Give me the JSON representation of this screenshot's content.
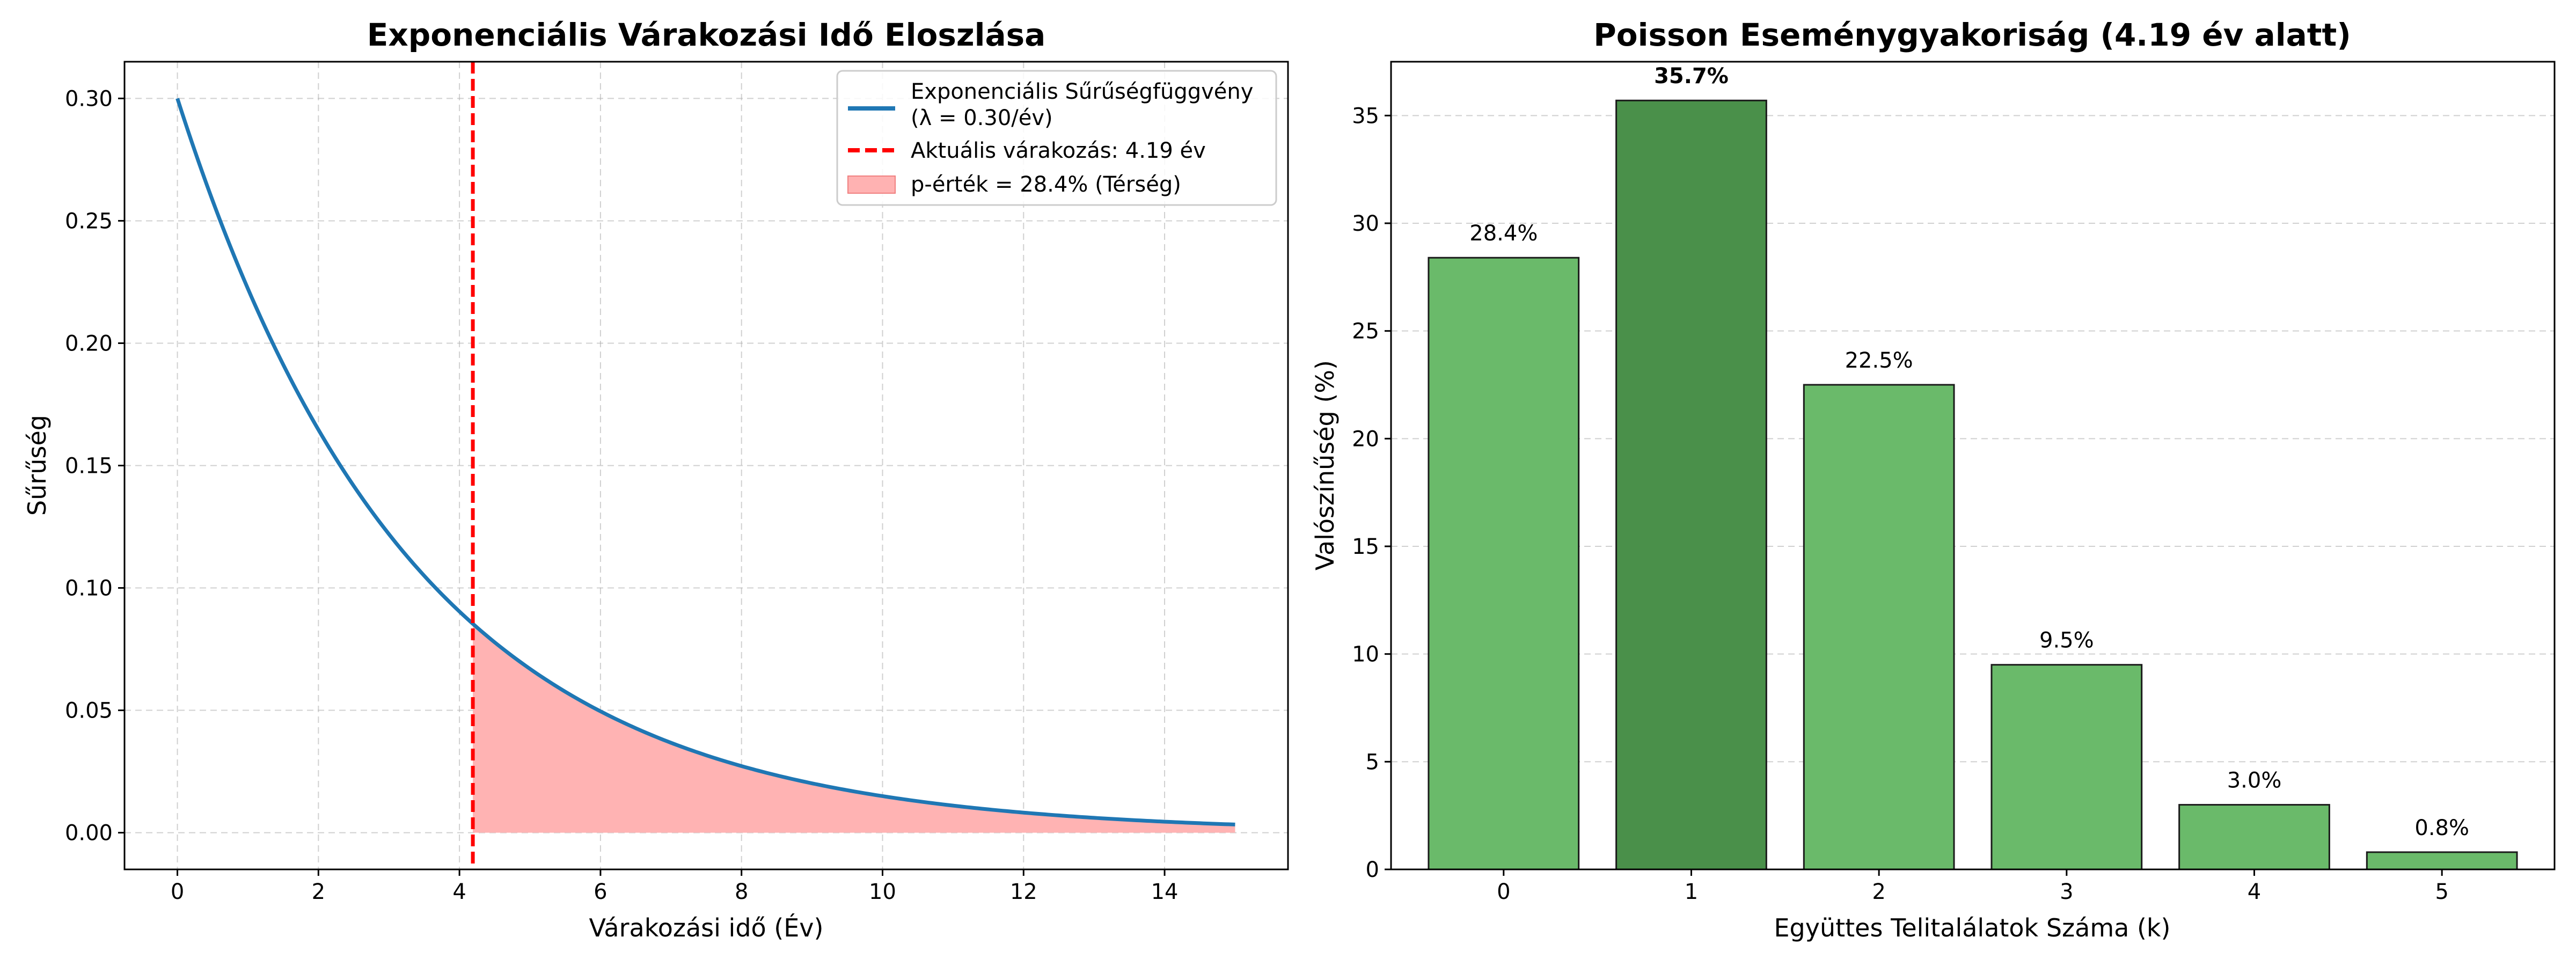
{
  "chart_data": [
    {
      "type": "line",
      "title": "Exponenciális Várakozási Idő Eloszlása",
      "xlabel": "Várakozási idő (Év)",
      "ylabel": "Sűrűség",
      "xlim": [
        -0.75,
        15.75
      ],
      "ylim": [
        -0.015,
        0.315
      ],
      "xticks": [
        0,
        2,
        4,
        6,
        8,
        10,
        12,
        14
      ],
      "xtick_labels": [
        "0",
        "2",
        "4",
        "6",
        "8",
        "10",
        "12",
        "14"
      ],
      "yticks": [
        0.0,
        0.05,
        0.1,
        0.15,
        0.2,
        0.25,
        0.3
      ],
      "ytick_labels": [
        "0.00",
        "0.05",
        "0.10",
        "0.15",
        "0.20",
        "0.25",
        "0.30"
      ],
      "grid": true,
      "lambda": 0.3,
      "x_range": [
        0,
        15
      ],
      "wait_time": 4.19,
      "legend": {
        "position": "top-right",
        "entries": [
          {
            "line1": "Exponenciális Sűrűségfüggvény",
            "line2": "(λ = 0.30/év)",
            "color": "#1f77b4"
          },
          {
            "line1": "Aktuális várakozás: 4.19 év",
            "color": "#ff0000"
          },
          {
            "line1": "p-érték = 28.4% (Térség)",
            "color": "#ffb2b2"
          }
        ]
      },
      "colors": {
        "curve": "#1f77b4",
        "vline": "#ff0000",
        "fill": "#ffb3b3"
      }
    },
    {
      "type": "bar",
      "title": "Poisson Eseménygyakoriság (4.19 év alatt)",
      "xlabel": "Együttes Telitalálatok Száma (k)",
      "ylabel": "Valószínűség (%)",
      "categories": [
        "0",
        "1",
        "2",
        "3",
        "4",
        "5"
      ],
      "values": [
        28.4,
        35.7,
        22.5,
        9.5,
        3.0,
        0.8
      ],
      "labels": [
        "28.4%",
        "35.7%",
        "22.5%",
        "9.5%",
        "3.0%",
        "0.8%"
      ],
      "highlight_index": 1,
      "ylim": [
        0,
        37.5
      ],
      "yticks": [
        0,
        5,
        10,
        15,
        20,
        25,
        30,
        35
      ],
      "ytick_labels": [
        "0",
        "5",
        "10",
        "15",
        "20",
        "25",
        "30",
        "35"
      ],
      "grid": true,
      "colors": {
        "bar": "#6aba6a",
        "highlight": "#4a904a",
        "edge": "#1a1a1a"
      }
    }
  ]
}
